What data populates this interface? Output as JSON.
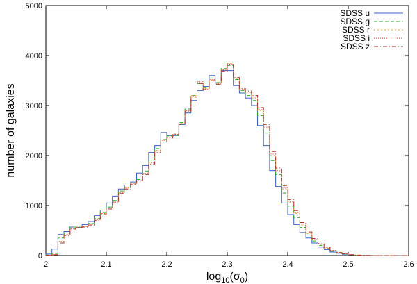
{
  "chart_data": {
    "type": "line",
    "step": true,
    "xlabel": "log10(σ0)",
    "xlabel_parts": {
      "base": "log",
      "sub": "10",
      "open": "(σ",
      "sub2": "0",
      "close": ")"
    },
    "ylabel": "number of galaxies",
    "xlim": [
      2.0,
      2.6
    ],
    "ylim": [
      0,
      5000
    ],
    "x_ticks": [
      "2",
      "2.1",
      "2.2",
      "2.3",
      "2.4",
      "2.5",
      "2.6"
    ],
    "y_ticks": [
      "0",
      "1000",
      "2000",
      "3000",
      "4000",
      "5000"
    ],
    "grid": false,
    "legend_position": "top-right",
    "bin_edges": [
      2.0,
      2.01,
      2.02,
      2.03,
      2.04,
      2.05,
      2.06,
      2.07,
      2.08,
      2.09,
      2.1,
      2.11,
      2.12,
      2.13,
      2.14,
      2.15,
      2.16,
      2.17,
      2.18,
      2.19,
      2.2,
      2.21,
      2.22,
      2.23,
      2.24,
      2.25,
      2.26,
      2.27,
      2.28,
      2.29,
      2.3,
      2.31,
      2.32,
      2.33,
      2.34,
      2.35,
      2.36,
      2.37,
      2.38,
      2.39,
      2.4,
      2.41,
      2.42,
      2.43,
      2.44,
      2.45,
      2.46,
      2.47,
      2.48,
      2.49,
      2.5,
      2.51,
      2.52,
      2.53,
      2.54,
      2.55,
      2.56,
      2.57,
      2.58,
      2.59,
      2.6
    ],
    "series": [
      {
        "name": "SDSS u",
        "color": "#3a5fcd",
        "dash": "",
        "values": [
          30,
          130,
          420,
          480,
          570,
          560,
          620,
          680,
          800,
          910,
          1050,
          1190,
          1330,
          1410,
          1470,
          1650,
          1800,
          2060,
          2200,
          2460,
          2400,
          2400,
          2620,
          2850,
          3100,
          3300,
          3380,
          3600,
          3450,
          3700,
          3700,
          3400,
          3250,
          3150,
          3000,
          2600,
          2200,
          1700,
          1380,
          1050,
          820,
          620,
          460,
          350,
          250,
          170,
          120,
          70,
          45,
          25,
          12,
          6,
          3,
          1,
          0,
          0,
          0,
          0,
          0,
          0
        ]
      },
      {
        "name": "SDSS g",
        "color": "#22b322",
        "dash": "5,3",
        "values": [
          10,
          40,
          350,
          450,
          570,
          570,
          590,
          640,
          740,
          860,
          970,
          1100,
          1290,
          1370,
          1450,
          1520,
          1690,
          1910,
          2140,
          2320,
          2390,
          2400,
          2660,
          2930,
          3200,
          3440,
          3350,
          3550,
          3460,
          3740,
          3800,
          3520,
          3300,
          3200,
          3100,
          2800,
          2450,
          1900,
          1620,
          1250,
          990,
          760,
          560,
          410,
          290,
          200,
          140,
          85,
          55,
          30,
          14,
          7,
          3,
          1,
          0,
          0,
          0,
          0,
          0,
          0
        ]
      },
      {
        "name": "SDSS r",
        "color": "#e8a030",
        "dash": "2,3",
        "values": [
          5,
          20,
          280,
          420,
          550,
          570,
          580,
          630,
          720,
          840,
          950,
          1070,
          1260,
          1350,
          1440,
          1500,
          1650,
          1870,
          2100,
          2310,
          2370,
          2430,
          2650,
          2900,
          3200,
          3480,
          3340,
          3520,
          3430,
          3720,
          3840,
          3540,
          3320,
          3260,
          3150,
          2900,
          2550,
          2000,
          1680,
          1330,
          1060,
          840,
          610,
          440,
          310,
          220,
          150,
          95,
          60,
          33,
          16,
          8,
          4,
          1,
          0,
          0,
          0,
          0,
          0,
          0
        ]
      },
      {
        "name": "SDSS i",
        "color": "#e03a3a",
        "dash": "1,2",
        "values": [
          5,
          20,
          280,
          420,
          540,
          560,
          580,
          620,
          720,
          840,
          950,
          1070,
          1260,
          1350,
          1430,
          1500,
          1640,
          1860,
          2090,
          2300,
          2360,
          2420,
          2640,
          2900,
          3190,
          3470,
          3330,
          3520,
          3430,
          3710,
          3830,
          3550,
          3330,
          3270,
          3170,
          2920,
          2570,
          2030,
          1700,
          1350,
          1080,
          860,
          630,
          450,
          320,
          230,
          155,
          100,
          62,
          34,
          17,
          8,
          4,
          1,
          0,
          0,
          0,
          0,
          0,
          0
        ]
      },
      {
        "name": "SDSS z",
        "color": "#b03030",
        "dash": "6,3,1,3",
        "values": [
          5,
          15,
          250,
          400,
          530,
          560,
          570,
          610,
          700,
          820,
          930,
          1050,
          1240,
          1330,
          1420,
          1490,
          1620,
          1830,
          2060,
          2270,
          2350,
          2420,
          2620,
          2880,
          3170,
          3440,
          3320,
          3500,
          3420,
          3690,
          3820,
          3560,
          3340,
          3290,
          3200,
          2960,
          2620,
          2080,
          1750,
          1400,
          1120,
          900,
          660,
          470,
          340,
          240,
          160,
          105,
          65,
          36,
          18,
          9,
          4,
          1,
          0,
          0,
          0,
          0,
          0,
          0
        ]
      }
    ]
  }
}
